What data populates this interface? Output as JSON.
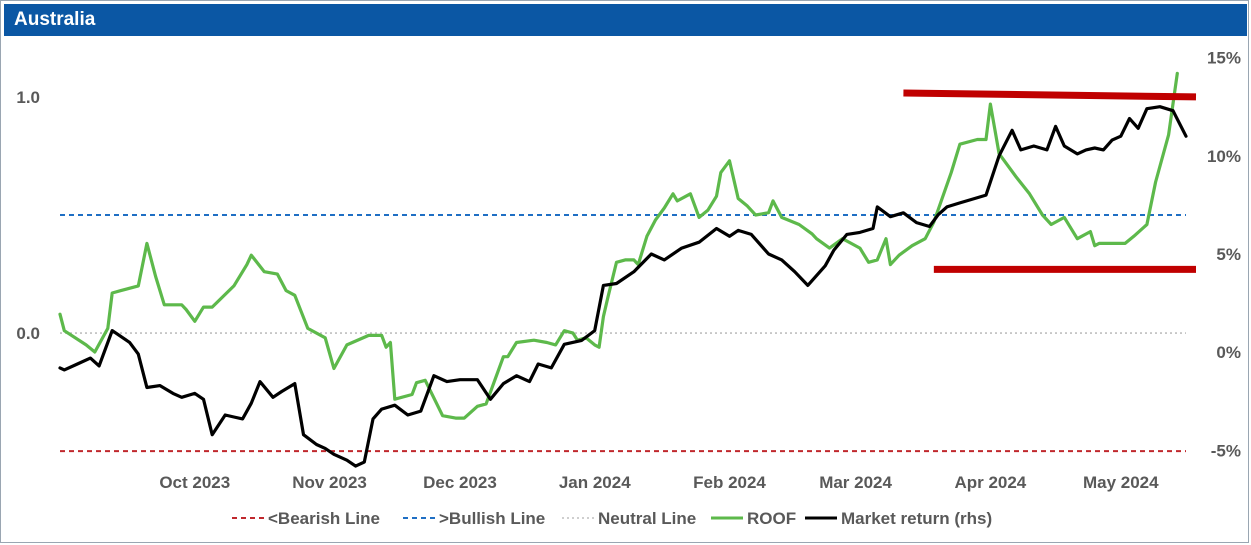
{
  "window": {
    "title": "Australia"
  },
  "colors": {
    "header_bg": "#0b57a4",
    "roof": "#5db94b",
    "market": "#000000",
    "bearish": "#c0282d",
    "bullish": "#1f6fc4",
    "neutral": "#bfbfbf",
    "resistance": "#c00000"
  },
  "chart_data": {
    "type": "line",
    "title": "Australia",
    "x_labels": [
      "Oct 2023",
      "Nov 2023",
      "Dec 2023",
      "Jan 2024",
      "Feb 2024",
      "Mar 2024",
      "Apr 2024",
      "May 2024"
    ],
    "x_range": [
      "2023-09-14",
      "2024-05-30"
    ],
    "y_left": {
      "ticks": [
        "1.0",
        "0.0"
      ],
      "range": [
        -0.58,
        1.25
      ]
    },
    "y_right": {
      "ticks": [
        "15%",
        "10%",
        "5%",
        "0%",
        "-5%"
      ],
      "range": [
        -6.0,
        16.0
      ]
    },
    "reference_lines": [
      {
        "name": "<Bearish Line",
        "value": -0.5,
        "style": "dashed"
      },
      {
        "name": ">Bullish Line",
        "value": 0.5,
        "style": "dashed"
      },
      {
        "name": "Neutral Line",
        "value": 0.0,
        "style": "dotted"
      }
    ],
    "annotations": [
      {
        "type": "horizontal-bar",
        "axis": "rhs",
        "from": "2024-03-26",
        "to": "2024-05-30",
        "start_value": 13.2,
        "end_value": 13.0
      },
      {
        "type": "horizontal-bar",
        "axis": "left",
        "from": "2024-04-02",
        "to": "2024-05-30",
        "start_value": 0.27,
        "end_value": 0.27
      }
    ],
    "series": [
      {
        "name": "ROOF",
        "axis": "left",
        "points": [
          [
            "2023-09-14",
            0.08
          ],
          [
            "2023-09-15",
            0.01
          ],
          [
            "2023-09-20",
            -0.05
          ],
          [
            "2023-09-22",
            -0.08
          ],
          [
            "2023-09-25",
            0.02
          ],
          [
            "2023-09-26",
            0.17
          ],
          [
            "2023-09-28",
            0.18
          ],
          [
            "2023-10-02",
            0.2
          ],
          [
            "2023-10-04",
            0.38
          ],
          [
            "2023-10-06",
            0.24
          ],
          [
            "2023-10-08",
            0.12
          ],
          [
            "2023-10-12",
            0.12
          ],
          [
            "2023-10-13",
            0.1
          ],
          [
            "2023-10-15",
            0.05
          ],
          [
            "2023-10-17",
            0.11
          ],
          [
            "2023-10-19",
            0.11
          ],
          [
            "2023-10-24",
            0.2
          ],
          [
            "2023-10-27",
            0.29
          ],
          [
            "2023-10-28",
            0.33
          ],
          [
            "2023-10-31",
            0.26
          ],
          [
            "2023-11-03",
            0.25
          ],
          [
            "2023-11-05",
            0.18
          ],
          [
            "2023-11-07",
            0.16
          ],
          [
            "2023-11-10",
            0.02
          ],
          [
            "2023-11-14",
            -0.02
          ],
          [
            "2023-11-16",
            -0.15
          ],
          [
            "2023-11-19",
            -0.05
          ],
          [
            "2023-11-24",
            -0.01
          ],
          [
            "2023-11-27",
            -0.01
          ],
          [
            "2023-11-28",
            -0.06
          ],
          [
            "2023-11-29",
            -0.04
          ],
          [
            "2023-11-30",
            -0.28
          ],
          [
            "2023-12-04",
            -0.26
          ],
          [
            "2023-12-05",
            -0.21
          ],
          [
            "2023-12-07",
            -0.2
          ],
          [
            "2023-12-11",
            -0.35
          ],
          [
            "2023-12-14",
            -0.36
          ],
          [
            "2023-12-16",
            -0.36
          ],
          [
            "2023-12-19",
            -0.31
          ],
          [
            "2023-12-21",
            -0.3
          ],
          [
            "2023-12-25",
            -0.1
          ],
          [
            "2023-12-26",
            -0.1
          ],
          [
            "2023-12-28",
            -0.04
          ],
          [
            "2024-01-01",
            -0.03
          ],
          [
            "2024-01-04",
            -0.04
          ],
          [
            "2024-01-06",
            -0.05
          ],
          [
            "2024-01-08",
            0.01
          ],
          [
            "2024-01-10",
            0.0
          ],
          [
            "2024-01-11",
            -0.03
          ],
          [
            "2024-01-13",
            -0.02
          ],
          [
            "2024-01-15",
            -0.05
          ],
          [
            "2024-01-16",
            -0.06
          ],
          [
            "2024-01-17",
            0.07
          ],
          [
            "2024-01-18",
            0.15
          ],
          [
            "2024-01-20",
            0.3
          ],
          [
            "2024-01-22",
            0.31
          ],
          [
            "2024-01-24",
            0.31
          ],
          [
            "2024-01-25",
            0.29
          ],
          [
            "2024-01-27",
            0.41
          ],
          [
            "2024-01-29",
            0.48
          ],
          [
            "2024-01-31",
            0.53
          ],
          [
            "2024-02-02",
            0.59
          ],
          [
            "2024-02-03",
            0.56
          ],
          [
            "2024-02-06",
            0.59
          ],
          [
            "2024-02-08",
            0.49
          ],
          [
            "2024-02-10",
            0.52
          ],
          [
            "2024-02-12",
            0.58
          ],
          [
            "2024-02-13",
            0.68
          ],
          [
            "2024-02-15",
            0.73
          ],
          [
            "2024-02-17",
            0.57
          ],
          [
            "2024-02-19",
            0.54
          ],
          [
            "2024-02-21",
            0.5
          ],
          [
            "2024-02-24",
            0.51
          ],
          [
            "2024-02-25",
            0.56
          ],
          [
            "2024-02-27",
            0.49
          ],
          [
            "2024-03-02",
            0.46
          ],
          [
            "2024-03-05",
            0.42
          ],
          [
            "2024-03-06",
            0.4
          ],
          [
            "2024-03-09",
            0.36
          ],
          [
            "2024-03-12",
            0.4
          ],
          [
            "2024-03-14",
            0.38
          ],
          [
            "2024-03-16",
            0.36
          ],
          [
            "2024-03-18",
            0.3
          ],
          [
            "2024-03-20",
            0.31
          ],
          [
            "2024-03-22",
            0.4
          ],
          [
            "2024-03-23",
            0.29
          ],
          [
            "2024-03-25",
            0.33
          ],
          [
            "2024-03-28",
            0.37
          ],
          [
            "2024-03-31",
            0.4
          ],
          [
            "2024-04-02",
            0.47
          ],
          [
            "2024-04-06",
            0.68
          ],
          [
            "2024-04-08",
            0.8
          ],
          [
            "2024-04-12",
            0.82
          ],
          [
            "2024-04-14",
            0.82
          ],
          [
            "2024-04-15",
            0.97
          ],
          [
            "2024-04-17",
            0.76
          ],
          [
            "2024-04-21",
            0.66
          ],
          [
            "2024-04-24",
            0.59
          ],
          [
            "2024-04-27",
            0.5
          ],
          [
            "2024-04-29",
            0.46
          ],
          [
            "2024-05-02",
            0.49
          ],
          [
            "2024-05-05",
            0.4
          ],
          [
            "2024-05-08",
            0.43
          ],
          [
            "2024-05-09",
            0.37
          ],
          [
            "2024-05-10",
            0.38
          ],
          [
            "2024-05-12",
            0.38
          ],
          [
            "2024-05-16",
            0.38
          ],
          [
            "2024-05-18",
            0.41
          ],
          [
            "2024-05-21",
            0.46
          ],
          [
            "2024-05-23",
            0.64
          ],
          [
            "2024-05-26",
            0.84
          ],
          [
            "2024-05-28",
            1.1
          ]
        ]
      },
      {
        "name": "Market return (rhs)",
        "axis": "rhs",
        "points": [
          [
            "2023-09-14",
            -0.8
          ],
          [
            "2023-09-15",
            -0.9
          ],
          [
            "2023-09-18",
            -0.6
          ],
          [
            "2023-09-21",
            -0.3
          ],
          [
            "2023-09-23",
            -0.7
          ],
          [
            "2023-09-26",
            1.1
          ],
          [
            "2023-09-30",
            0.5
          ],
          [
            "2023-10-02",
            -0.1
          ],
          [
            "2023-10-04",
            -1.8
          ],
          [
            "2023-10-07",
            -1.7
          ],
          [
            "2023-10-10",
            -2.1
          ],
          [
            "2023-10-12",
            -2.3
          ],
          [
            "2023-10-15",
            -2.1
          ],
          [
            "2023-10-17",
            -2.4
          ],
          [
            "2023-10-19",
            -4.2
          ],
          [
            "2023-10-22",
            -3.2
          ],
          [
            "2023-10-24",
            -3.3
          ],
          [
            "2023-10-26",
            -3.4
          ],
          [
            "2023-10-28",
            -2.6
          ],
          [
            "2023-10-30",
            -1.5
          ],
          [
            "2023-11-02",
            -2.3
          ],
          [
            "2023-11-04",
            -2.0
          ],
          [
            "2023-11-07",
            -1.6
          ],
          [
            "2023-11-09",
            -4.2
          ],
          [
            "2023-11-12",
            -4.7
          ],
          [
            "2023-11-14",
            -4.9
          ],
          [
            "2023-11-16",
            -5.2
          ],
          [
            "2023-11-19",
            -5.5
          ],
          [
            "2023-11-21",
            -5.8
          ],
          [
            "2023-11-23",
            -5.6
          ],
          [
            "2023-11-25",
            -3.4
          ],
          [
            "2023-11-27",
            -2.9
          ],
          [
            "2023-11-30",
            -2.7
          ],
          [
            "2023-12-03",
            -3.2
          ],
          [
            "2023-12-06",
            -3.0
          ],
          [
            "2023-12-09",
            -1.2
          ],
          [
            "2023-12-12",
            -1.5
          ],
          [
            "2023-12-15",
            -1.4
          ],
          [
            "2023-12-19",
            -1.4
          ],
          [
            "2023-12-22",
            -2.4
          ],
          [
            "2023-12-25",
            -1.6
          ],
          [
            "2023-12-28",
            -1.2
          ],
          [
            "2023-12-31",
            -1.5
          ],
          [
            "2024-01-02",
            -0.6
          ],
          [
            "2024-01-05",
            -0.8
          ],
          [
            "2024-01-08",
            0.4
          ],
          [
            "2024-01-12",
            0.6
          ],
          [
            "2024-01-15",
            1.1
          ],
          [
            "2024-01-17",
            3.4
          ],
          [
            "2024-01-20",
            3.5
          ],
          [
            "2024-01-24",
            4.1
          ],
          [
            "2024-01-28",
            5.0
          ],
          [
            "2024-01-31",
            4.7
          ],
          [
            "2024-02-04",
            5.3
          ],
          [
            "2024-02-08",
            5.6
          ],
          [
            "2024-02-12",
            6.3
          ],
          [
            "2024-02-15",
            5.9
          ],
          [
            "2024-02-17",
            6.2
          ],
          [
            "2024-02-20",
            6.0
          ],
          [
            "2024-02-24",
            5.0
          ],
          [
            "2024-02-27",
            4.7
          ],
          [
            "2024-03-01",
            4.1
          ],
          [
            "2024-03-04",
            3.4
          ],
          [
            "2024-03-08",
            4.4
          ],
          [
            "2024-03-10",
            5.2
          ],
          [
            "2024-03-13",
            6.0
          ],
          [
            "2024-03-16",
            6.1
          ],
          [
            "2024-03-19",
            6.3
          ],
          [
            "2024-03-20",
            7.4
          ],
          [
            "2024-03-23",
            6.9
          ],
          [
            "2024-03-26",
            7.1
          ],
          [
            "2024-03-29",
            6.6
          ],
          [
            "2024-04-01",
            6.4
          ],
          [
            "2024-04-03",
            7.0
          ],
          [
            "2024-04-05",
            7.4
          ],
          [
            "2024-04-08",
            7.6
          ],
          [
            "2024-04-11",
            7.8
          ],
          [
            "2024-04-14",
            8.0
          ],
          [
            "2024-04-17",
            10.0
          ],
          [
            "2024-04-20",
            11.3
          ],
          [
            "2024-04-22",
            10.3
          ],
          [
            "2024-04-25",
            10.5
          ],
          [
            "2024-04-28",
            10.3
          ],
          [
            "2024-04-30",
            11.5
          ],
          [
            "2024-05-02",
            10.5
          ],
          [
            "2024-05-05",
            10.1
          ],
          [
            "2024-05-07",
            10.3
          ],
          [
            "2024-05-09",
            10.4
          ],
          [
            "2024-05-11",
            10.3
          ],
          [
            "2024-05-13",
            10.8
          ],
          [
            "2024-05-15",
            11.0
          ],
          [
            "2024-05-17",
            11.9
          ],
          [
            "2024-05-19",
            11.4
          ],
          [
            "2024-05-21",
            12.4
          ],
          [
            "2024-05-24",
            12.5
          ],
          [
            "2024-05-27",
            12.3
          ],
          [
            "2024-05-30",
            11.0
          ]
        ]
      }
    ],
    "legend": {
      "position": "bottom",
      "entries": [
        "<Bearish Line",
        ">Bullish Line",
        "Neutral Line",
        "ROOF",
        "Market return (rhs)"
      ]
    }
  }
}
